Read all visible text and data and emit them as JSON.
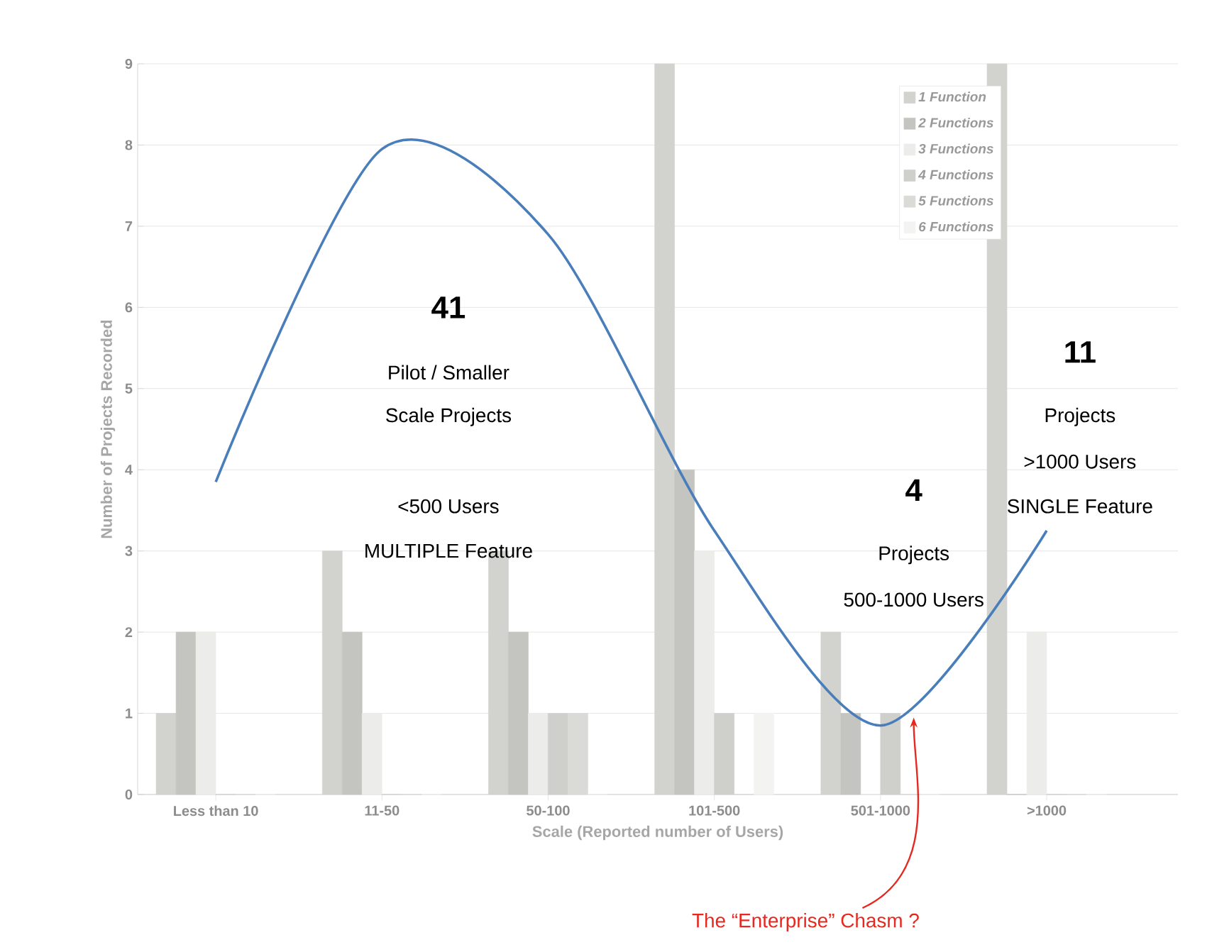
{
  "chart_data": {
    "type": "bar",
    "categories": [
      "Less than 10",
      "11-50",
      "50-100",
      "101-500",
      "501-1000",
      ">1000"
    ],
    "xlabel": "Scale (Reported number of Users)",
    "ylabel": "Number of Projects Recorded",
    "ylim": [
      0,
      9
    ],
    "yticks": [
      0,
      1,
      2,
      3,
      4,
      5,
      6,
      7,
      8,
      9
    ],
    "grid": "y",
    "legend": "top right",
    "series": [
      {
        "name": "1 Function",
        "color": "#d2d2ce",
        "values": [
          1,
          3,
          3,
          9,
          2,
          9
        ]
      },
      {
        "name": "2 Functions",
        "color": "#c4c4c0",
        "values": [
          2,
          2,
          2,
          4,
          1,
          0
        ]
      },
      {
        "name": "3 Functions",
        "color": "#ececea",
        "values": [
          2,
          1,
          1,
          3,
          0,
          2
        ]
      },
      {
        "name": "4 Functions",
        "color": "#cfcfcb",
        "values": [
          0,
          0,
          1,
          1,
          1,
          0
        ]
      },
      {
        "name": "5 Functions",
        "color": "#dadad6",
        "values": [
          0,
          0,
          1,
          0,
          0,
          0
        ]
      },
      {
        "name": "6 Functions",
        "color": "#f3f3f1",
        "values": [
          0,
          0,
          0,
          1,
          0,
          0
        ]
      },
      {
        "type": "line",
        "color": "#4a7ebb",
        "values": [
          3.85,
          7.95,
          6.9,
          3.25,
          0.85,
          3.25
        ]
      }
    ],
    "annotations": [
      "41",
      "Pilot / Smaller",
      "Scale Projects",
      "<500 Users",
      "MULTIPLE Feature",
      "4",
      "Projects",
      "500-1000 Users",
      "11",
      "Projects",
      ">1000 Users",
      "SINGLE Feature",
      "The “Enterprise” Chasm ?"
    ]
  }
}
